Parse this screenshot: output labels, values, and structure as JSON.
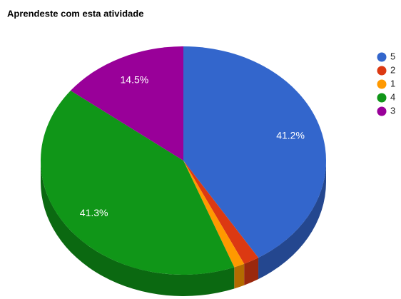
{
  "chart_data": {
    "type": "pie3d",
    "title": "Aprendeste com esta atividade",
    "categories": [
      "5",
      "2",
      "1",
      "4",
      "3"
    ],
    "values": [
      41.2,
      1.8,
      1.2,
      41.3,
      14.5
    ],
    "value_labels": [
      "41.2%",
      null,
      null,
      "41.3%",
      "14.5%"
    ],
    "colors": [
      "#3366cc",
      "#dc3912",
      "#ff9900",
      "#109618",
      "#990099"
    ],
    "legend": "right"
  }
}
